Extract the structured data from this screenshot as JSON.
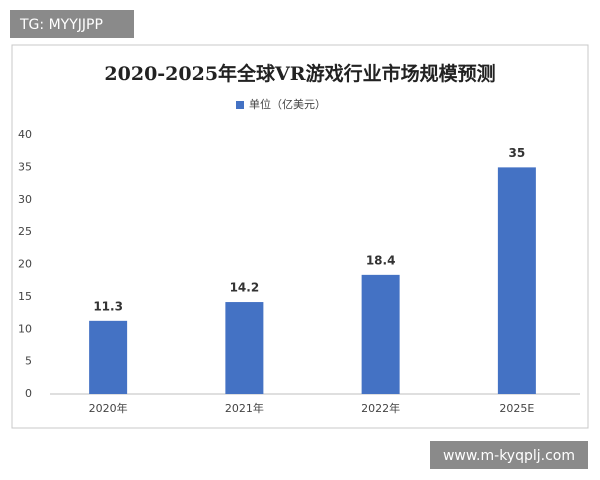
{
  "watermarks": [
    "TG: MYYJJPP",
    "www.m-kyqplj.com"
  ],
  "chart_data": {
    "type": "bar",
    "title": "2020-2025年全球VR游戏行业市场规模预测",
    "categories": [
      "2020年",
      "2021年",
      "2022年",
      "2025E"
    ],
    "series": [
      {
        "name": "单位（亿美元）",
        "color": "#4472c4",
        "values": [
          11.3,
          14.2,
          18.4,
          35
        ]
      }
    ],
    "ylim": [
      0,
      40
    ],
    "yticks": [
      0,
      5,
      10,
      15,
      20,
      25,
      30,
      35,
      40
    ],
    "grid": false,
    "legend": "top"
  }
}
